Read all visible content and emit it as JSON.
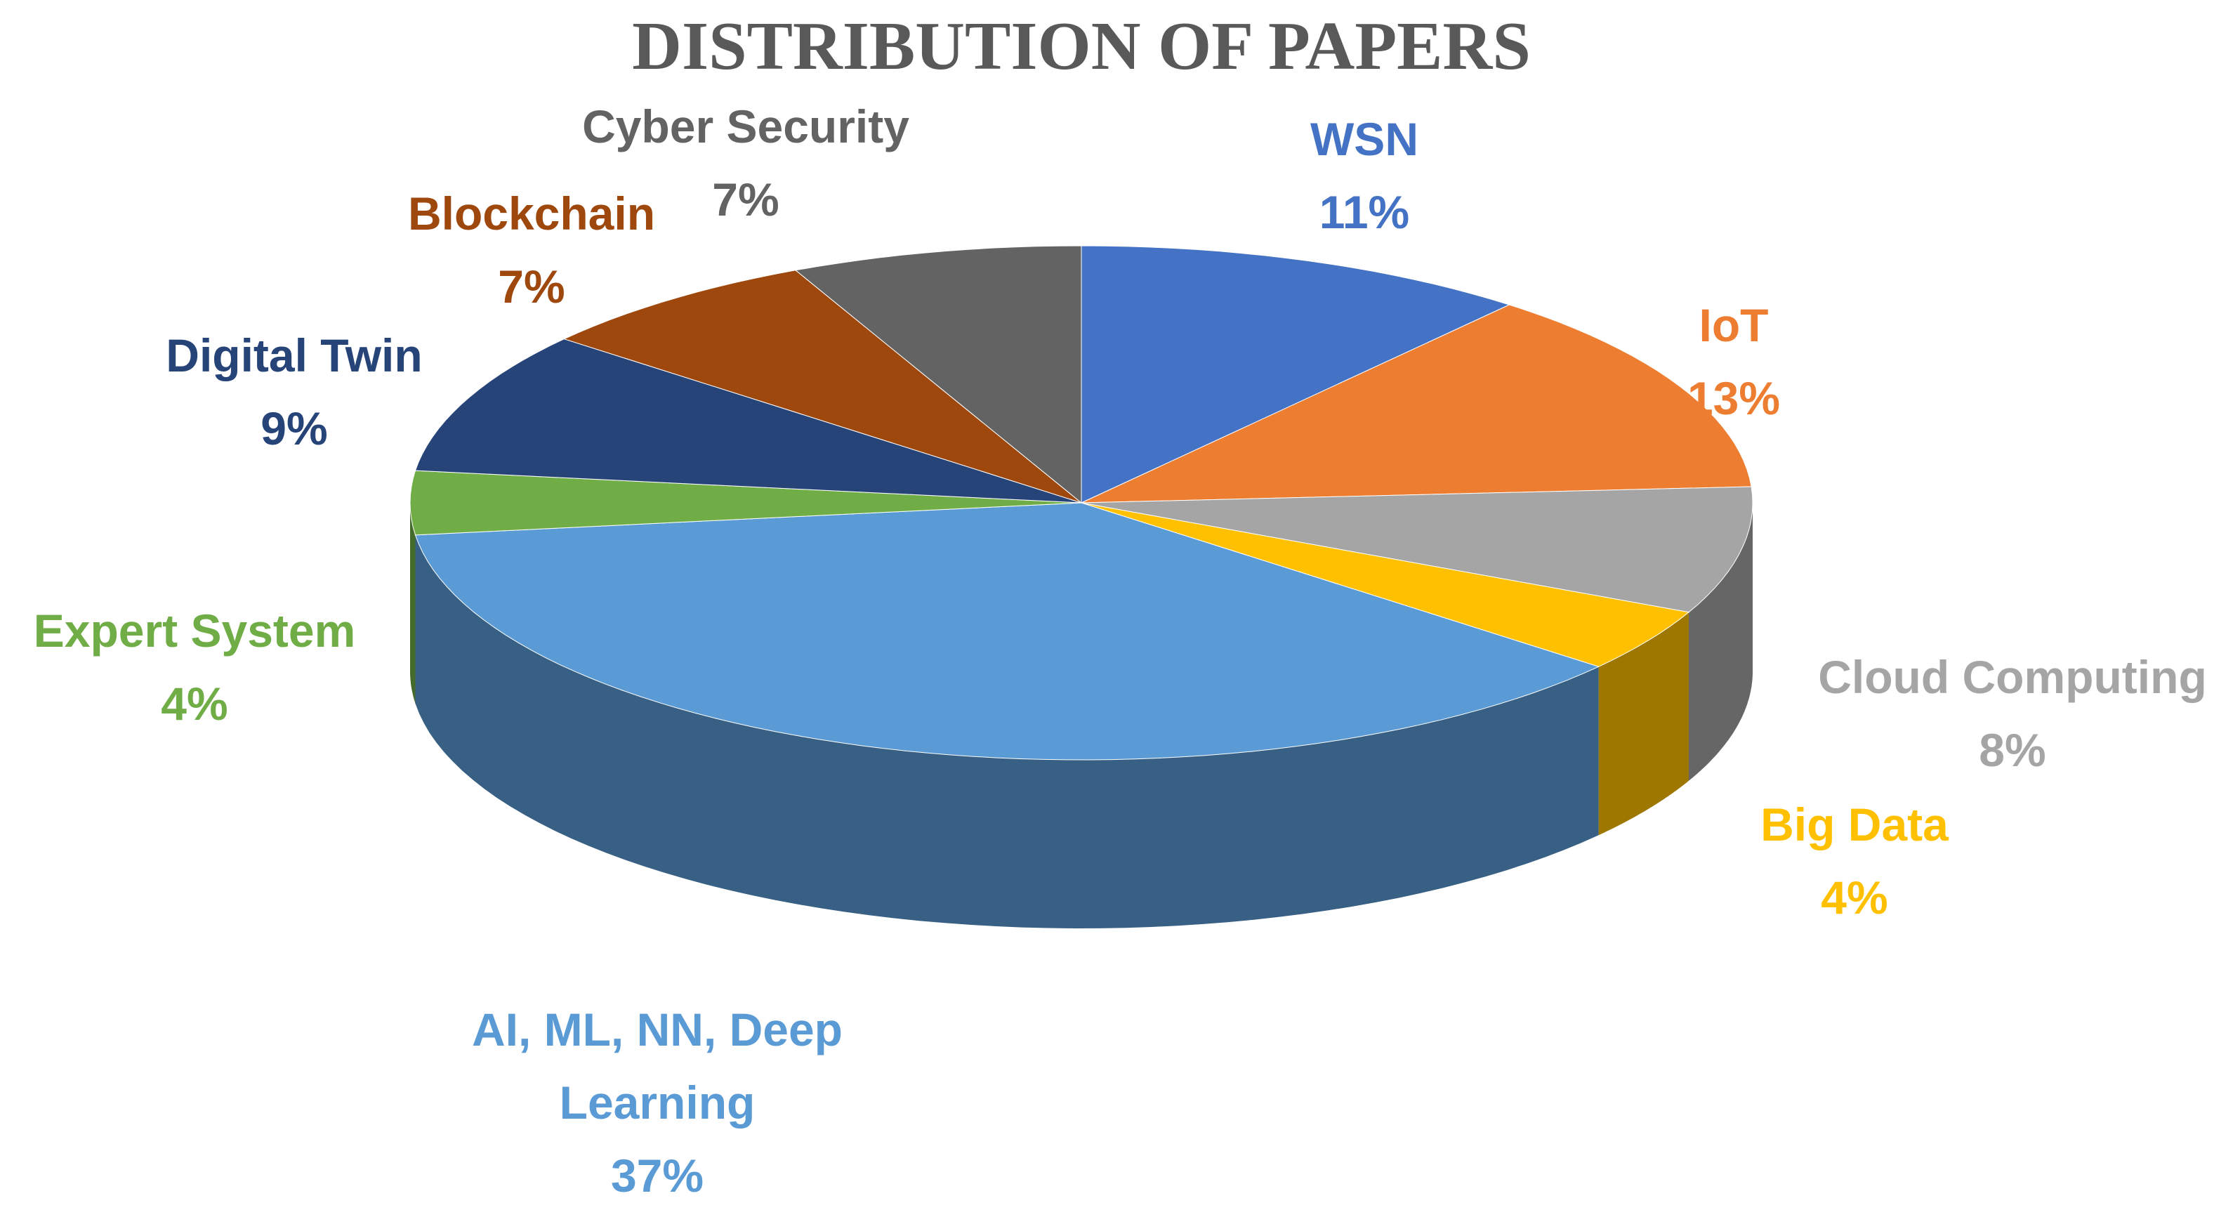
{
  "chart_data": {
    "type": "pie3d",
    "title": "DISTRIBUTION OF PAPERS",
    "categories": [
      "WSN",
      "IoT",
      "Cloud Computing",
      "Big Data",
      "AI, ML, NN, Deep Learning",
      "Expert System",
      "Digital Twin",
      "Blockchain",
      "Cyber Security"
    ],
    "values": [
      11,
      13,
      8,
      4,
      37,
      4,
      9,
      7,
      7
    ],
    "value_labels": [
      "11%",
      "13%",
      "8%",
      "4%",
      "37%",
      "4%",
      "9%",
      "7%",
      "7%"
    ],
    "colors": [
      "#4472c4",
      "#ed7d31",
      "#a5a5a5",
      "#ffc000",
      "#5b9bd5",
      "#70ad47",
      "#264478",
      "#9e480e",
      "#636363"
    ]
  }
}
